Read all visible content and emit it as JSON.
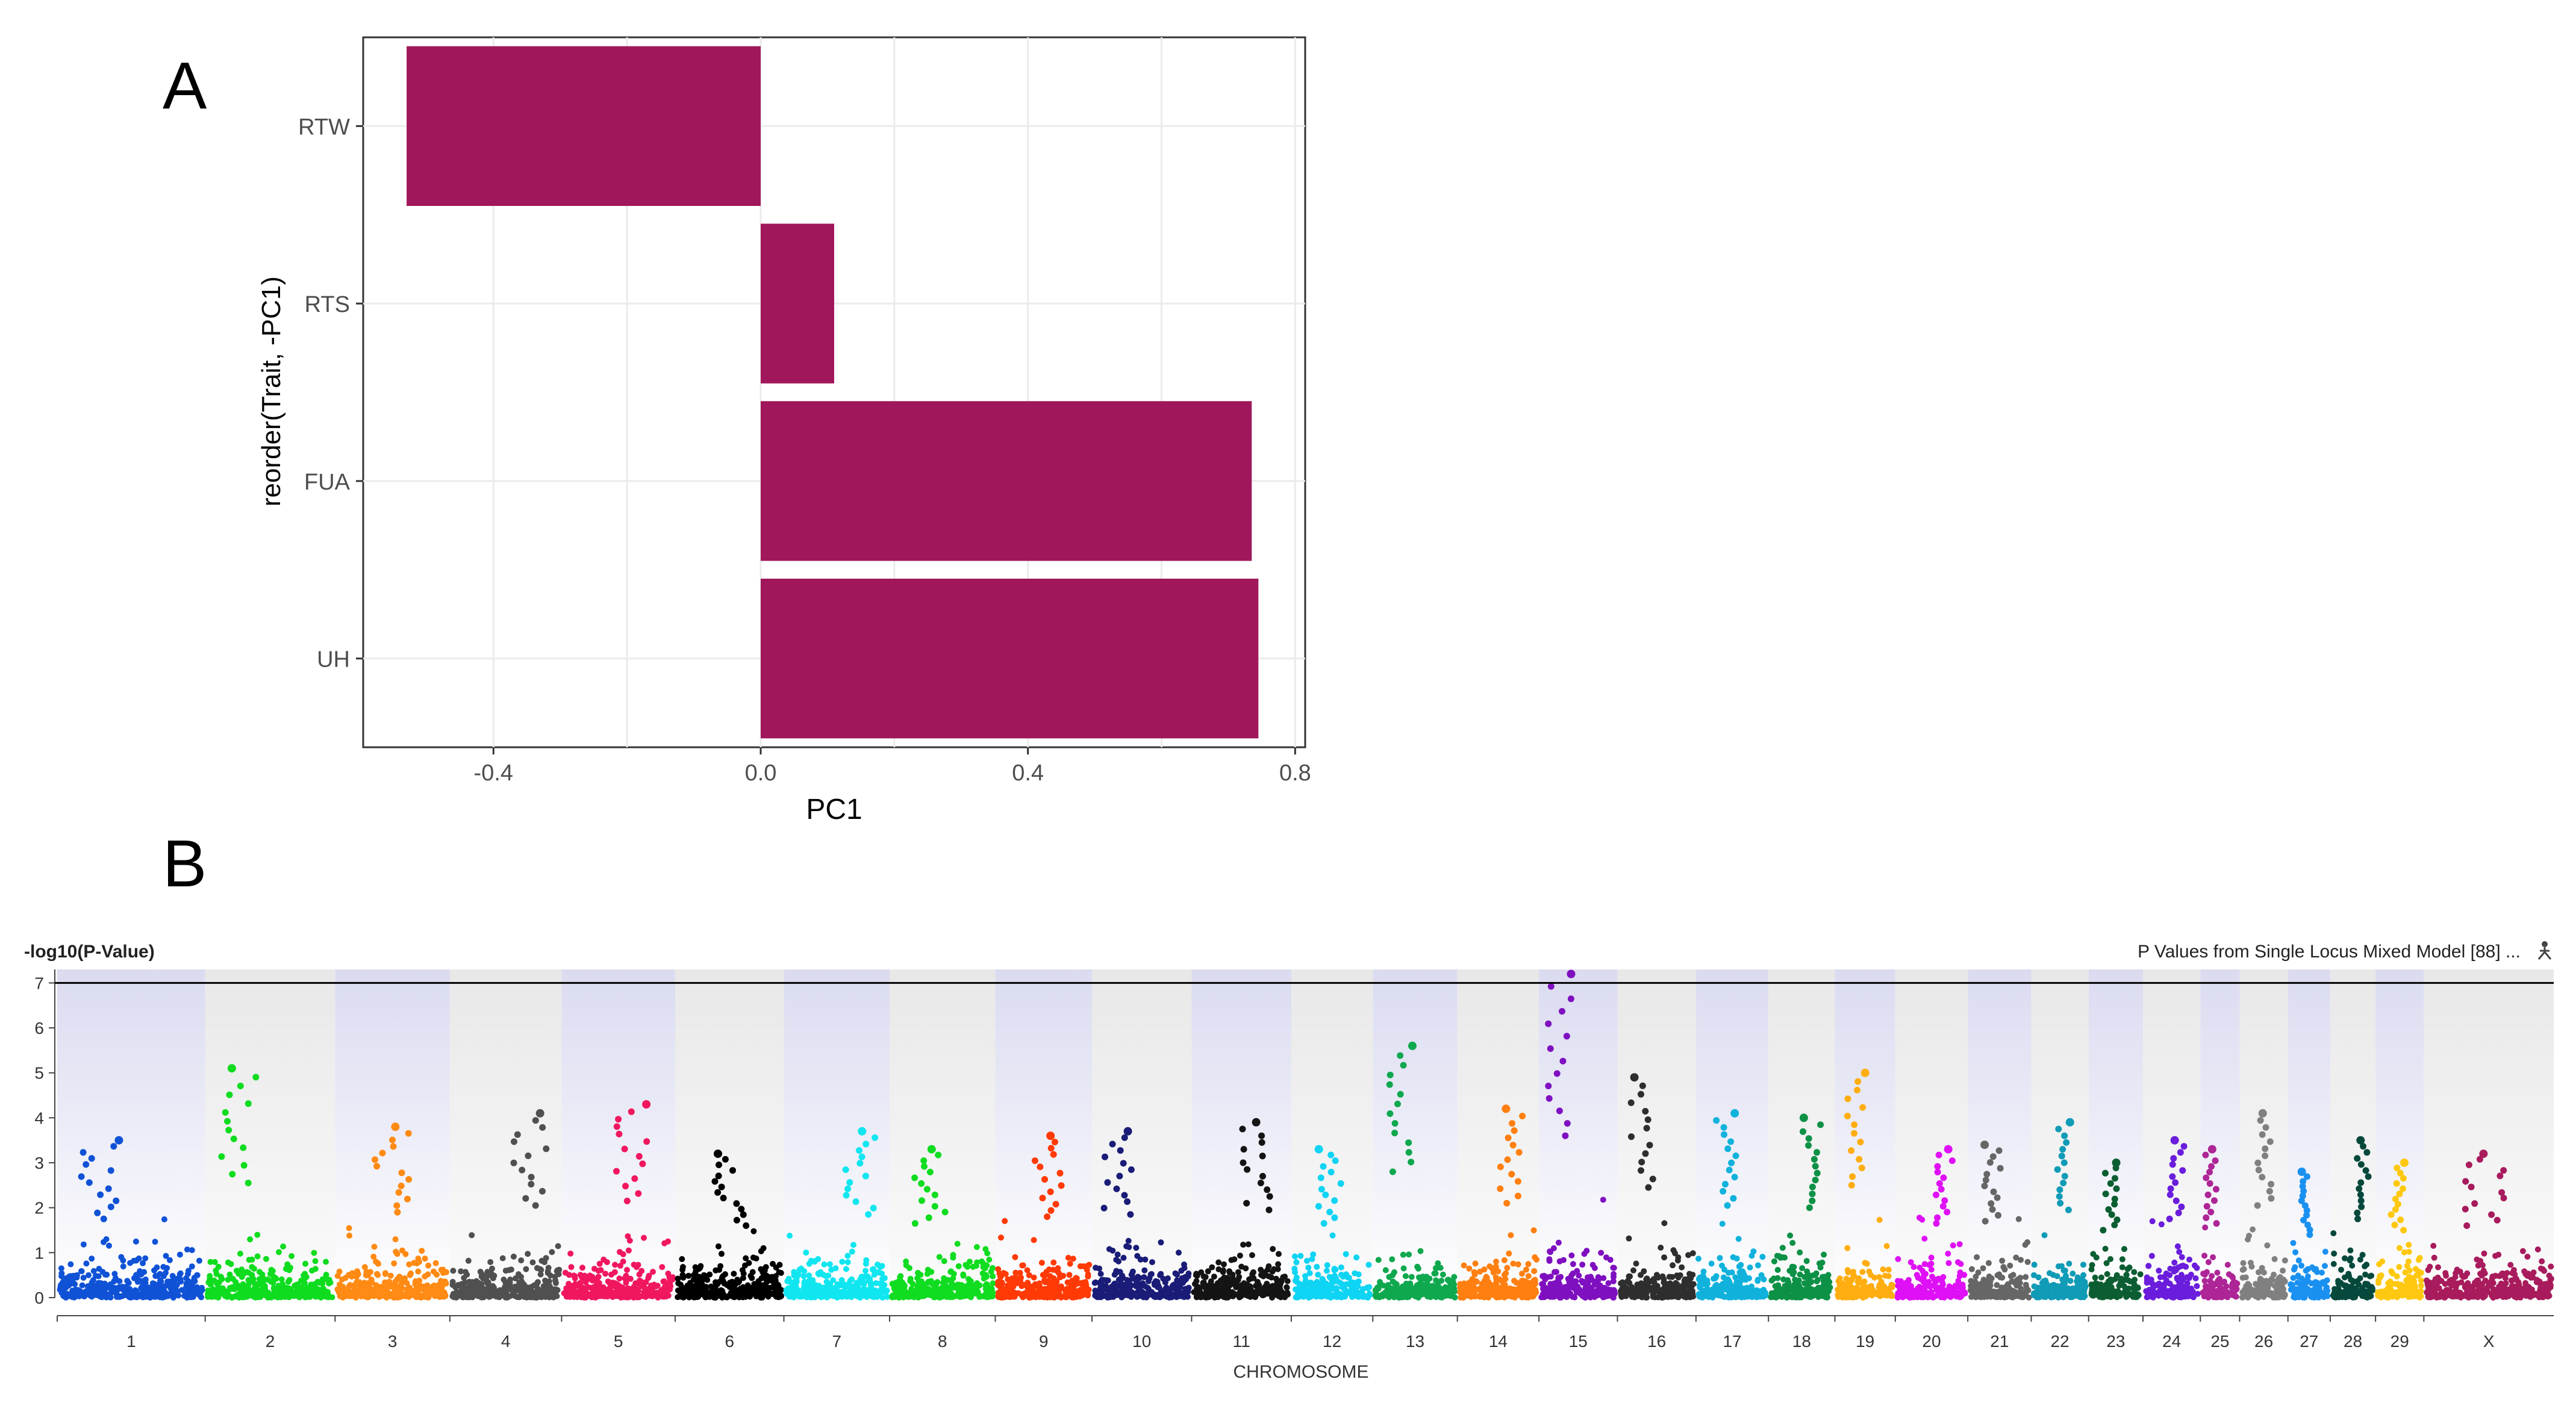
{
  "panels": {
    "a_label": "A",
    "b_label": "B"
  },
  "chart_data": [
    {
      "type": "bar",
      "orientation": "horizontal",
      "categories": [
        "RTW",
        "RTS",
        "FUA",
        "UH"
      ],
      "values": [
        -0.53,
        0.11,
        0.735,
        0.745
      ],
      "xlabel": "PC1",
      "ylabel": "reorder(Trait, -PC1)",
      "xlim": [
        -0.595,
        0.815
      ],
      "xticks": [
        -0.4,
        0.0,
        0.4,
        0.8
      ],
      "xtick_labels": [
        "-0.4",
        "0.0",
        "0.4",
        "0.8"
      ],
      "grid": true,
      "bar_color": "#a0185b"
    },
    {
      "type": "scatter",
      "subtype": "manhattan",
      "ylabel": "-log10(P-Value)",
      "xlabel": "CHROMOSOME",
      "legend_text": "P Values from Single Locus Mixed Model [88] ...",
      "ylim": [
        0,
        7.3
      ],
      "yticks": [
        "0",
        "1",
        "2",
        "3",
        "4",
        "5",
        "6",
        "7"
      ],
      "threshold": 7.0,
      "chromosomes": [
        {
          "name": "1",
          "color": "#1052d6",
          "peak": 3.5
        },
        {
          "name": "2",
          "color": "#0fdc1f",
          "peak": 5.1
        },
        {
          "name": "3",
          "color": "#ff8a14",
          "peak": 3.8
        },
        {
          "name": "4",
          "color": "#505050",
          "peak": 4.1
        },
        {
          "name": "5",
          "color": "#f0175f",
          "peak": 4.3
        },
        {
          "name": "6",
          "color": "#000000",
          "peak": 3.2
        },
        {
          "name": "7",
          "color": "#10e6f0",
          "peak": 3.7
        },
        {
          "name": "8",
          "color": "#10dc20",
          "peak": 3.3
        },
        {
          "name": "9",
          "color": "#ff3a06",
          "peak": 3.6
        },
        {
          "name": "10",
          "color": "#1a1c78",
          "peak": 3.7
        },
        {
          "name": "11",
          "color": "#141414",
          "peak": 3.9
        },
        {
          "name": "12",
          "color": "#0fd4f4",
          "peak": 3.3
        },
        {
          "name": "13",
          "color": "#0fa84e",
          "peak": 5.6
        },
        {
          "name": "14",
          "color": "#ff7f10",
          "peak": 4.2
        },
        {
          "name": "15",
          "color": "#7f10c0",
          "peak": 7.2
        },
        {
          "name": "16",
          "color": "#2e2e2e",
          "peak": 4.9
        },
        {
          "name": "17",
          "color": "#10b2dc",
          "peak": 4.1
        },
        {
          "name": "18",
          "color": "#0d9146",
          "peak": 4.0
        },
        {
          "name": "19",
          "color": "#ffad10",
          "peak": 5.0
        },
        {
          "name": "20",
          "color": "#df10f5",
          "peak": 3.3
        },
        {
          "name": "21",
          "color": "#666666",
          "peak": 3.4
        },
        {
          "name": "22",
          "color": "#109bb6",
          "peak": 3.9
        },
        {
          "name": "23",
          "color": "#0c5e32",
          "peak": 3.0
        },
        {
          "name": "24",
          "color": "#6a1ddc",
          "peak": 3.5
        },
        {
          "name": "25",
          "color": "#ad2596",
          "peak": 3.3
        },
        {
          "name": "26",
          "color": "#808080",
          "peak": 4.1
        },
        {
          "name": "27",
          "color": "#1a91f0",
          "peak": 2.8
        },
        {
          "name": "28",
          "color": "#06493c",
          "peak": 3.5
        },
        {
          "name": "29",
          "color": "#ffc810",
          "peak": 3.0
        },
        {
          "name": "X",
          "color": "#a81b5c",
          "peak": 3.2
        }
      ]
    }
  ]
}
